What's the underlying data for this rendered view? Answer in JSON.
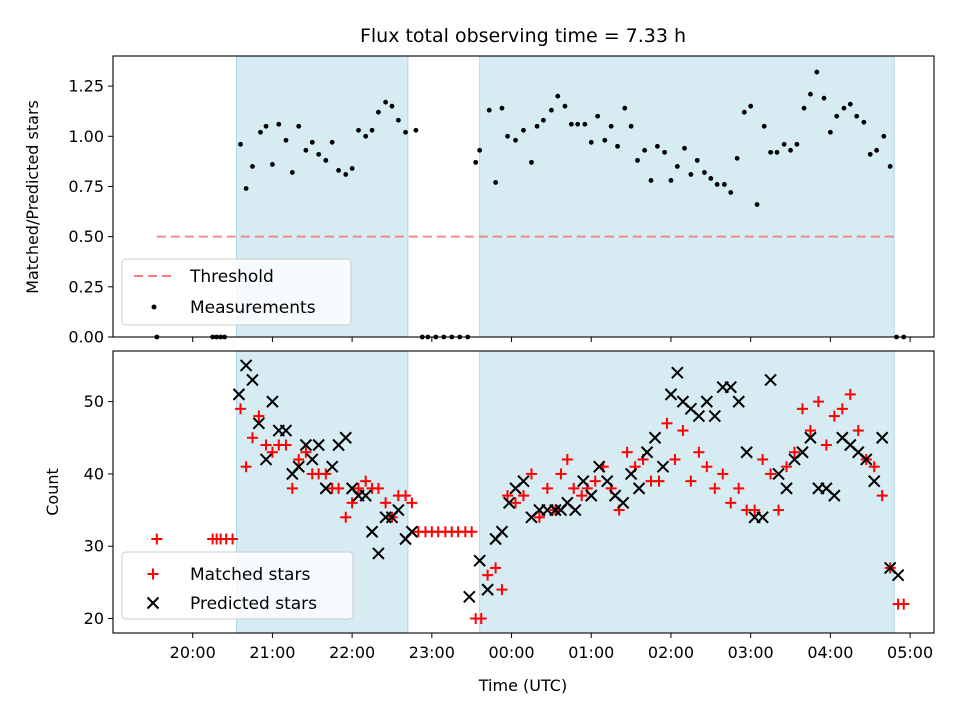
{
  "chart_data": [
    {
      "type": "scatter",
      "title": "Flux total observing time = 7.33 h",
      "ylabel": "Matched/Predicted stars",
      "ylim": [
        0,
        1.4
      ],
      "yticks": [
        "0.00",
        "0.25",
        "0.50",
        "0.75",
        "1.00",
        "1.25"
      ],
      "shaded_spans": [
        [
          20.55,
          22.7
        ],
        [
          23.6,
          28.8
        ]
      ],
      "threshold": {
        "label": "Threshold",
        "value": 0.5,
        "x_range": [
          19.55,
          28.85
        ],
        "color": "#f08080"
      },
      "measurements_label": "Measurements",
      "grid": false,
      "legend": "bottom-left",
      "series": [
        {
          "name": "Measurements",
          "color": "#000000",
          "x": [
            19.55,
            20.25,
            20.3,
            20.35,
            20.4,
            20.6,
            20.67,
            20.75,
            20.85,
            20.92,
            21.0,
            21.08,
            21.17,
            21.25,
            21.33,
            21.42,
            21.5,
            21.58,
            21.67,
            21.75,
            21.83,
            21.92,
            22.0,
            22.08,
            22.17,
            22.25,
            22.33,
            22.42,
            22.5,
            22.58,
            22.67,
            22.8,
            22.88,
            22.95,
            23.05,
            23.15,
            23.25,
            23.35,
            23.45,
            23.55,
            23.6,
            23.72,
            23.8,
            23.88,
            23.95,
            24.05,
            24.15,
            24.25,
            24.32,
            24.4,
            24.5,
            24.58,
            24.67,
            24.75,
            24.83,
            24.92,
            25.0,
            25.08,
            25.17,
            25.25,
            25.33,
            25.42,
            25.5,
            25.58,
            25.67,
            25.75,
            25.83,
            25.92,
            26.0,
            26.08,
            26.17,
            26.25,
            26.33,
            26.42,
            26.5,
            26.58,
            26.67,
            26.75,
            26.83,
            26.92,
            27.0,
            27.08,
            27.17,
            27.25,
            27.33,
            27.42,
            27.5,
            27.58,
            27.67,
            27.75,
            27.83,
            27.92,
            28.0,
            28.08,
            28.17,
            28.25,
            28.33,
            28.42,
            28.5,
            28.58,
            28.67,
            28.75,
            28.83,
            28.92
          ],
          "y": [
            0.0,
            0.0,
            0.0,
            0.0,
            0.0,
            0.96,
            0.74,
            0.85,
            1.02,
            1.05,
            0.86,
            1.06,
            0.98,
            0.82,
            1.05,
            0.93,
            0.97,
            0.91,
            0.88,
            0.97,
            0.83,
            0.81,
            0.84,
            1.03,
            1.0,
            1.03,
            1.12,
            1.17,
            1.15,
            1.08,
            1.02,
            1.03,
            0.0,
            0.0,
            0.0,
            0.0,
            0.0,
            0.0,
            0.0,
            0.87,
            0.93,
            1.13,
            0.77,
            1.14,
            1.0,
            0.98,
            1.03,
            0.87,
            1.05,
            1.08,
            1.13,
            1.2,
            1.15,
            1.06,
            1.06,
            1.06,
            0.97,
            1.1,
            0.98,
            1.05,
            0.95,
            1.14,
            1.05,
            0.88,
            0.93,
            0.78,
            0.95,
            0.92,
            0.78,
            0.85,
            0.94,
            0.81,
            0.88,
            0.82,
            0.79,
            0.76,
            0.76,
            0.72,
            0.89,
            1.12,
            1.15,
            0.66,
            1.05,
            0.92,
            0.92,
            0.96,
            0.93,
            0.96,
            1.14,
            1.21,
            1.32,
            1.19,
            1.02,
            1.1,
            1.14,
            1.16,
            1.1,
            1.07,
            0.91,
            0.93,
            1.0,
            0.85,
            0.0,
            0.0
          ]
        }
      ]
    },
    {
      "type": "scatter",
      "xlabel": "Time (UTC)",
      "ylabel": "Count",
      "ylim": [
        18,
        57
      ],
      "yticks": [
        "20",
        "30",
        "40",
        "50"
      ],
      "xlim": [
        19.0,
        29.3
      ],
      "xticks": [
        {
          "value": 20,
          "label": "20:00"
        },
        {
          "value": 21,
          "label": "21:00"
        },
        {
          "value": 22,
          "label": "22:00"
        },
        {
          "value": 23,
          "label": "23:00"
        },
        {
          "value": 24,
          "label": "00:00"
        },
        {
          "value": 25,
          "label": "01:00"
        },
        {
          "value": 26,
          "label": "02:00"
        },
        {
          "value": 27,
          "label": "03:00"
        },
        {
          "value": 28,
          "label": "04:00"
        },
        {
          "value": 29,
          "label": "05:00"
        }
      ],
      "grid": false,
      "legend": "bottom-left",
      "series": [
        {
          "name": "Matched stars",
          "marker": "plus",
          "color": "#ff0000",
          "x": [
            19.55,
            20.25,
            20.3,
            20.35,
            20.42,
            20.5,
            20.6,
            20.67,
            20.75,
            20.83,
            20.92,
            21.0,
            21.08,
            21.17,
            21.25,
            21.33,
            21.42,
            21.5,
            21.58,
            21.67,
            21.75,
            21.83,
            21.92,
            22.0,
            22.08,
            22.17,
            22.25,
            22.33,
            22.42,
            22.5,
            22.58,
            22.67,
            22.75,
            22.83,
            22.92,
            23.0,
            23.08,
            23.17,
            23.25,
            23.33,
            23.42,
            23.5,
            23.55,
            23.62,
            23.7,
            23.8,
            23.88,
            23.95,
            24.05,
            24.15,
            24.25,
            24.35,
            24.45,
            24.55,
            24.62,
            24.7,
            24.78,
            24.88,
            24.95,
            25.05,
            25.15,
            25.25,
            25.35,
            25.45,
            25.55,
            25.65,
            25.75,
            25.85,
            25.95,
            26.05,
            26.15,
            26.25,
            26.35,
            26.45,
            26.55,
            26.65,
            26.75,
            26.85,
            26.95,
            27.05,
            27.15,
            27.25,
            27.35,
            27.45,
            27.55,
            27.65,
            27.75,
            27.85,
            27.95,
            28.05,
            28.15,
            28.25,
            28.35,
            28.45,
            28.55,
            28.65,
            28.75,
            28.85,
            28.92
          ],
          "y": [
            31,
            31,
            31,
            31,
            31,
            31,
            49,
            41,
            45,
            48,
            44,
            43,
            44,
            44,
            38,
            42,
            43,
            40,
            40,
            40,
            38,
            38,
            34,
            36,
            38,
            39,
            38,
            38,
            36,
            34,
            37,
            37,
            36,
            32,
            32,
            32,
            32,
            32,
            32,
            32,
            32,
            32,
            20,
            20,
            26,
            27,
            24,
            37,
            36,
            37,
            40,
            34,
            38,
            35,
            40,
            42,
            38,
            37,
            38,
            39,
            41,
            38,
            35,
            43,
            41,
            42,
            39,
            39,
            47,
            42,
            46,
            39,
            43,
            41,
            38,
            40,
            36,
            38,
            35,
            35,
            42,
            40,
            35,
            41,
            43,
            49,
            46,
            50,
            44,
            48,
            49,
            51,
            46,
            42,
            41,
            37,
            27,
            22,
            22
          ]
        },
        {
          "name": "Predicted stars",
          "marker": "x",
          "color": "#000000",
          "x": [
            20.58,
            20.67,
            20.75,
            20.83,
            20.92,
            21.0,
            21.08,
            21.17,
            21.25,
            21.33,
            21.42,
            21.5,
            21.58,
            21.67,
            21.75,
            21.83,
            21.92,
            22.0,
            22.08,
            22.17,
            22.25,
            22.33,
            22.42,
            22.5,
            22.58,
            22.67,
            22.75,
            23.47,
            23.6,
            23.7,
            23.8,
            23.88,
            23.97,
            24.05,
            24.15,
            24.25,
            24.35,
            24.45,
            24.55,
            24.62,
            24.7,
            24.8,
            24.9,
            25.0,
            25.1,
            25.2,
            25.3,
            25.4,
            25.5,
            25.6,
            25.7,
            25.8,
            25.9,
            26.0,
            26.08,
            26.15,
            26.25,
            26.35,
            26.45,
            26.55,
            26.65,
            26.75,
            26.85,
            26.95,
            27.05,
            27.15,
            27.25,
            27.35,
            27.45,
            27.55,
            27.65,
            27.75,
            27.85,
            27.95,
            28.05,
            28.15,
            28.25,
            28.35,
            28.45,
            28.55,
            28.65,
            28.75,
            28.85
          ],
          "y": [
            51,
            55,
            53,
            47,
            42,
            50,
            46,
            46,
            40,
            41,
            44,
            42,
            44,
            38,
            41,
            44,
            45,
            38,
            37,
            37,
            32,
            29,
            34,
            34,
            35,
            31,
            32,
            23,
            28,
            24,
            31,
            32,
            36,
            38,
            39,
            34,
            35,
            35,
            35,
            35,
            36,
            35,
            39,
            37,
            41,
            39,
            37,
            36,
            40,
            38,
            43,
            45,
            41,
            51,
            54,
            50,
            49,
            48,
            50,
            48,
            52,
            52,
            50,
            43,
            34,
            34,
            53,
            40,
            38,
            42,
            43,
            45,
            38,
            38,
            37,
            45,
            44,
            43,
            42,
            39,
            45,
            27,
            26
          ]
        }
      ]
    }
  ]
}
